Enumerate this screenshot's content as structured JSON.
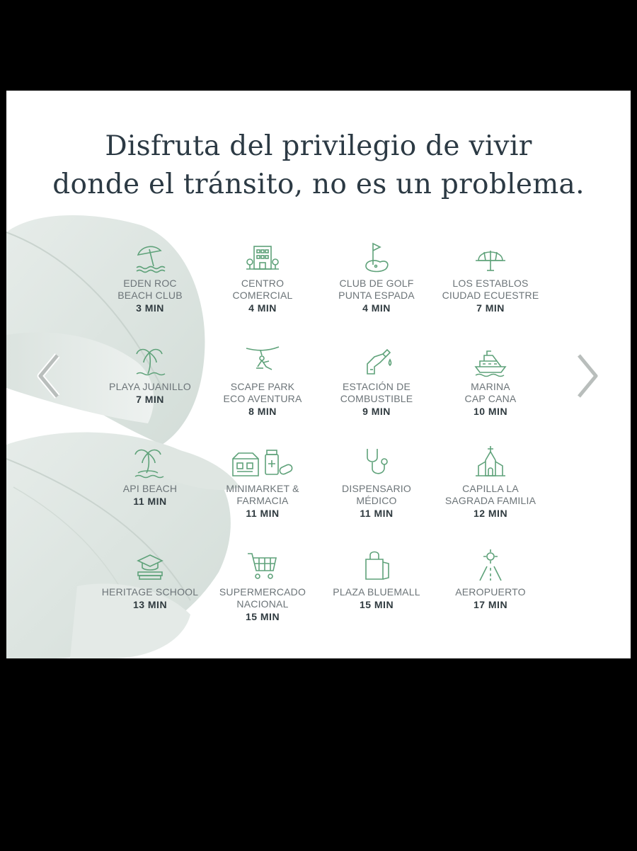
{
  "headline": {
    "line1": "Disfruta del privilegio de vivir",
    "line2": "donde el tránsito, no es un problema."
  },
  "colors": {
    "icon_green": "#5fa27a",
    "heading": "#2c3a44",
    "text": "#6c7478",
    "leaf": "#dfe7e3"
  },
  "places": [
    {
      "id": "eden-roc",
      "icon": "beach-umbrella-icon",
      "name": [
        "EDEN ROC",
        "BEACH CLUB"
      ],
      "time": "3 MIN"
    },
    {
      "id": "centro-comercial",
      "icon": "mall-building-icon",
      "name": [
        "CENTRO",
        "COMERCIAL"
      ],
      "time": "4 MIN"
    },
    {
      "id": "club-golf",
      "icon": "golf-flag-icon",
      "name": [
        "CLUB DE GOLF",
        "PUNTA ESPADA"
      ],
      "time": "4 MIN"
    },
    {
      "id": "los-establos",
      "icon": "polo-helmet-icon",
      "name": [
        "LOS ESTABLOS",
        "CIUDAD ECUESTRE"
      ],
      "time": "7 MIN"
    },
    {
      "id": "playa-juanillo",
      "icon": "palm-tree-icon",
      "name": [
        "PLAYA JUANILLO"
      ],
      "time": "7 MIN"
    },
    {
      "id": "scape-park",
      "icon": "zipline-icon",
      "name": [
        "SCAPE PARK",
        "ECO AVENTURA"
      ],
      "time": "8 MIN"
    },
    {
      "id": "estacion",
      "icon": "fuel-nozzle-icon",
      "name": [
        "ESTACIÓN DE",
        "COMBUSTIBLE"
      ],
      "time": "9 MIN"
    },
    {
      "id": "marina",
      "icon": "yacht-icon",
      "name": [
        "MARINA",
        "CAP CANA"
      ],
      "time": "10 MIN"
    },
    {
      "id": "api-beach",
      "icon": "palm-island-icon",
      "name": [
        "API BEACH"
      ],
      "time": "11 MIN"
    },
    {
      "id": "minimarket",
      "icon": "market-pharmacy-icon",
      "name": [
        "MINIMARKET &",
        "FARMACIA"
      ],
      "time": "11 MIN"
    },
    {
      "id": "dispensario",
      "icon": "stethoscope-icon",
      "name": [
        "DISPENSARIO",
        "MÉDICO"
      ],
      "time": "11 MIN"
    },
    {
      "id": "capilla",
      "icon": "chapel-icon",
      "name": [
        "CAPILLA LA",
        "SAGRADA FAMILIA"
      ],
      "time": "12 MIN"
    },
    {
      "id": "heritage",
      "icon": "school-books-icon",
      "name": [
        "HERITAGE SCHOOL"
      ],
      "time": "13 MIN"
    },
    {
      "id": "supermercado",
      "icon": "shopping-cart-icon",
      "name": [
        "SUPERMERCADO",
        "NACIONAL"
      ],
      "time": "15 MIN"
    },
    {
      "id": "bluemall",
      "icon": "shopping-bag-icon",
      "name": [
        "PLAZA BLUEMALL"
      ],
      "time": "15 MIN"
    },
    {
      "id": "aeropuerto",
      "icon": "airport-runway-icon",
      "name": [
        "AEROPUERTO"
      ],
      "time": "17 MIN"
    }
  ]
}
